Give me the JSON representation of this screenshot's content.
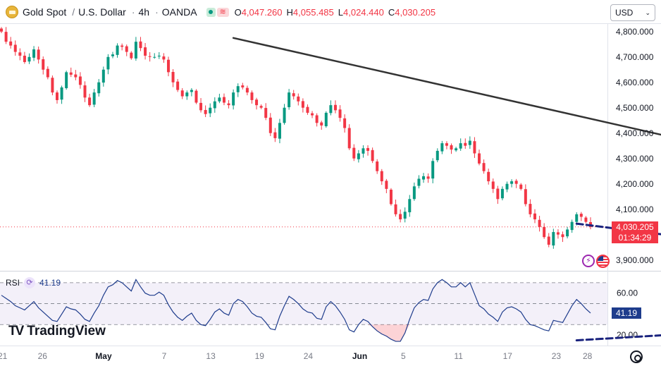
{
  "header": {
    "symbol": "Gold Spot",
    "separator1": "/",
    "quote": "U.S. Dollar",
    "separator2": "·",
    "interval": "4h",
    "separator3": "·",
    "source": "OANDA",
    "wave_glyph": "≋",
    "ohlc": [
      {
        "key": "O",
        "value": "4,047.260"
      },
      {
        "key": "H",
        "value": "4,055.485"
      },
      {
        "key": "L",
        "value": "4,024.440"
      },
      {
        "key": "C",
        "value": "4,030.205"
      }
    ]
  },
  "currency_selector": {
    "value": "USD",
    "chevron": "⌄"
  },
  "price_axis": {
    "ticks": [
      "4,800.000",
      "4,700.000",
      "4,600.000",
      "4,500.000",
      "4,400.000",
      "4,300.000",
      "4,200.000",
      "4,100.000",
      "3,900.000"
    ],
    "last_price": "4,030.205",
    "countdown": "01:34:29"
  },
  "rsi": {
    "name": "RSI",
    "value": "41.19",
    "ticks": [
      "60.00",
      "20.00"
    ],
    "cog_glyph": "⟳"
  },
  "time_axis": [
    "21",
    "26",
    "May",
    "7",
    "13",
    "19",
    "24",
    "Jun",
    "5",
    "11",
    "17",
    "23",
    "28"
  ],
  "brand": {
    "name": "TradingView",
    "mark": "TV"
  },
  "icons": {
    "flash": "⚡"
  },
  "colors": {
    "up": "#089981",
    "down": "#f23645",
    "rsi_line": "#1e3c8c",
    "rsi_band": "#7e57c2",
    "trendline": "#333333",
    "support": "#1a237e"
  },
  "chart_data": [
    {
      "type": "candlestick",
      "title": "Gold Spot / U.S. Dollar · 4h · OANDA",
      "ylim": [
        3860,
        4830
      ],
      "y_ticks": [
        4800,
        4700,
        4600,
        4500,
        4400,
        4300,
        4200,
        4100,
        3900
      ],
      "x_ticks": [
        "21",
        "26",
        "May",
        "7",
        "13",
        "19",
        "24",
        "Jun",
        "5",
        "11",
        "17",
        "23",
        "28"
      ],
      "last_close": 4030.205,
      "closes": [
        4800,
        4760,
        4745,
        4720,
        4705,
        4680,
        4700,
        4730,
        4690,
        4650,
        4620,
        4560,
        4530,
        4580,
        4640,
        4630,
        4620,
        4590,
        4540,
        4510,
        4560,
        4600,
        4650,
        4700,
        4710,
        4745,
        4740,
        4720,
        4695,
        4760,
        4735,
        4705,
        4700,
        4700,
        4705,
        4690,
        4640,
        4600,
        4570,
        4545,
        4560,
        4570,
        4520,
        4490,
        4475,
        4500,
        4525,
        4540,
        4520,
        4510,
        4560,
        4585,
        4580,
        4560,
        4530,
        4510,
        4500,
        4460,
        4400,
        4380,
        4440,
        4500,
        4560,
        4545,
        4525,
        4500,
        4480,
        4470,
        4440,
        4430,
        4480,
        4510,
        4490,
        4460,
        4420,
        4340,
        4300,
        4320,
        4340,
        4330,
        4290,
        4250,
        4210,
        4180,
        4120,
        4080,
        4060,
        4090,
        4140,
        4190,
        4220,
        4230,
        4220,
        4290,
        4330,
        4360,
        4350,
        4335,
        4340,
        4360,
        4350,
        4370,
        4320,
        4280,
        4250,
        4210,
        4180,
        4140,
        4180,
        4200,
        4210,
        4200,
        4180,
        4120,
        4080,
        4060,
        4030,
        3990,
        3960,
        4010,
        4000,
        3990,
        4020,
        4050,
        4080,
        4070,
        4050,
        4030
      ],
      "annotations": [
        {
          "type": "trendline",
          "from": [
            50,
            4775
          ],
          "to": [
            175,
            4258
          ]
        },
        {
          "type": "support",
          "from": [
            124,
            4043
          ],
          "to": [
            165,
            3949
          ]
        }
      ]
    },
    {
      "type": "line",
      "name": "RSI",
      "ylim": [
        10,
        80
      ],
      "y_ticks": [
        60,
        20
      ],
      "bands": [
        70,
        50,
        30
      ],
      "last_value": 41.19,
      "values": [
        58,
        55,
        52,
        48,
        46,
        44,
        48,
        52,
        46,
        42,
        38,
        34,
        33,
        40,
        47,
        45,
        44,
        40,
        35,
        33,
        41,
        48,
        58,
        66,
        68,
        72,
        70,
        66,
        62,
        73,
        66,
        60,
        58,
        58,
        61,
        58,
        49,
        42,
        37,
        34,
        38,
        41,
        34,
        30,
        29,
        35,
        42,
        45,
        41,
        39,
        50,
        54,
        52,
        47,
        41,
        38,
        37,
        32,
        26,
        25,
        38,
        48,
        57,
        54,
        50,
        45,
        42,
        41,
        36,
        35,
        47,
        52,
        48,
        42,
        35,
        25,
        23,
        30,
        35,
        33,
        28,
        24,
        21,
        19,
        16,
        14,
        14,
        22,
        35,
        46,
        51,
        54,
        53,
        64,
        70,
        73,
        70,
        66,
        66,
        70,
        66,
        70,
        59,
        48,
        45,
        40,
        37,
        33,
        42,
        46,
        47,
        45,
        42,
        35,
        30,
        29,
        27,
        25,
        24,
        34,
        33,
        32,
        40,
        48,
        54,
        50,
        45,
        41
      ],
      "annotations": [
        {
          "type": "support",
          "from": [
            124,
            15
          ],
          "to": [
            170,
            27
          ]
        }
      ]
    }
  ]
}
